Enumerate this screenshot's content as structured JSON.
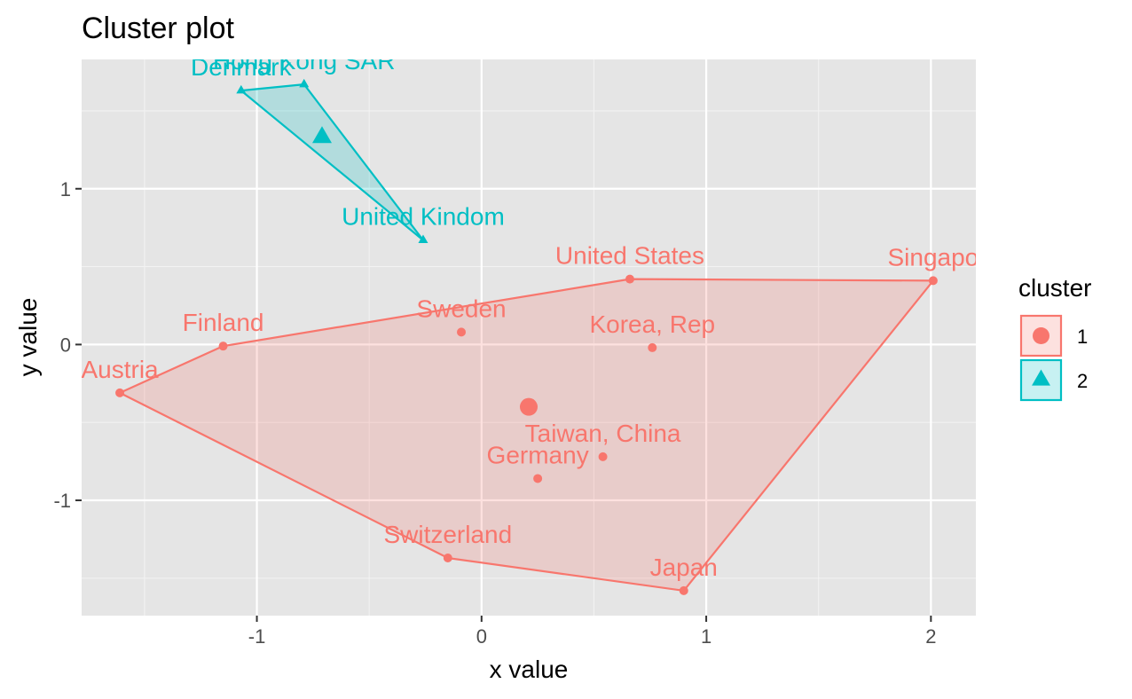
{
  "chart_data": {
    "type": "scatter",
    "title": "Cluster plot",
    "xlabel": "x value",
    "ylabel": "y value",
    "xlim": [
      -1.78,
      2.2
    ],
    "ylim": [
      -1.74,
      1.83
    ],
    "x_ticks": [
      -1,
      0,
      1,
      2
    ],
    "y_ticks": [
      -1,
      0,
      1
    ],
    "x_tick_labels": [
      "-1",
      "0",
      "1",
      "2"
    ],
    "y_tick_labels": [
      "-1",
      "0",
      "1"
    ],
    "grid": true,
    "legend": {
      "title": "cluster",
      "position": "right",
      "entries": [
        {
          "label": "1",
          "color": "#F8766D",
          "shape": "circle"
        },
        {
          "label": "2",
          "color": "#00BFC4",
          "shape": "triangle"
        }
      ]
    },
    "series": [
      {
        "name": "1",
        "color": "#F8766D",
        "shape": "circle",
        "points": [
          {
            "label": "Austria",
            "x": -1.61,
            "y": -0.31
          },
          {
            "label": "Finland",
            "x": -1.15,
            "y": -0.01
          },
          {
            "label": "Sweden",
            "x": -0.09,
            "y": 0.08
          },
          {
            "label": "United States",
            "x": 0.66,
            "y": 0.42
          },
          {
            "label": "Singapo",
            "x": 2.01,
            "y": 0.41
          },
          {
            "label": "Korea, Rep",
            "x": 0.76,
            "y": -0.02
          },
          {
            "label": "Taiwan, China",
            "x": 0.54,
            "y": -0.72
          },
          {
            "label": "Germany",
            "x": 0.25,
            "y": -0.86
          },
          {
            "label": "Switzerland",
            "x": -0.15,
            "y": -1.37
          },
          {
            "label": "Japan",
            "x": 0.9,
            "y": -1.58
          }
        ],
        "hull": [
          "Austria",
          "Finland",
          "United States",
          "Singapo",
          "Japan",
          "Switzerland"
        ],
        "centroid": {
          "x": 0.21,
          "y": -0.4
        }
      },
      {
        "name": "2",
        "color": "#00BFC4",
        "shape": "triangle",
        "points": [
          {
            "label": "Denmark",
            "x": -1.07,
            "y": 1.63
          },
          {
            "label": "Hong Kong SAR",
            "x": -0.79,
            "y": 1.67
          },
          {
            "label": "United Kindom",
            "x": -0.26,
            "y": 0.67
          }
        ],
        "hull": [
          "Denmark",
          "Hong Kong SAR",
          "United Kindom"
        ],
        "centroid": {
          "x": -0.71,
          "y": 1.33
        }
      }
    ]
  }
}
